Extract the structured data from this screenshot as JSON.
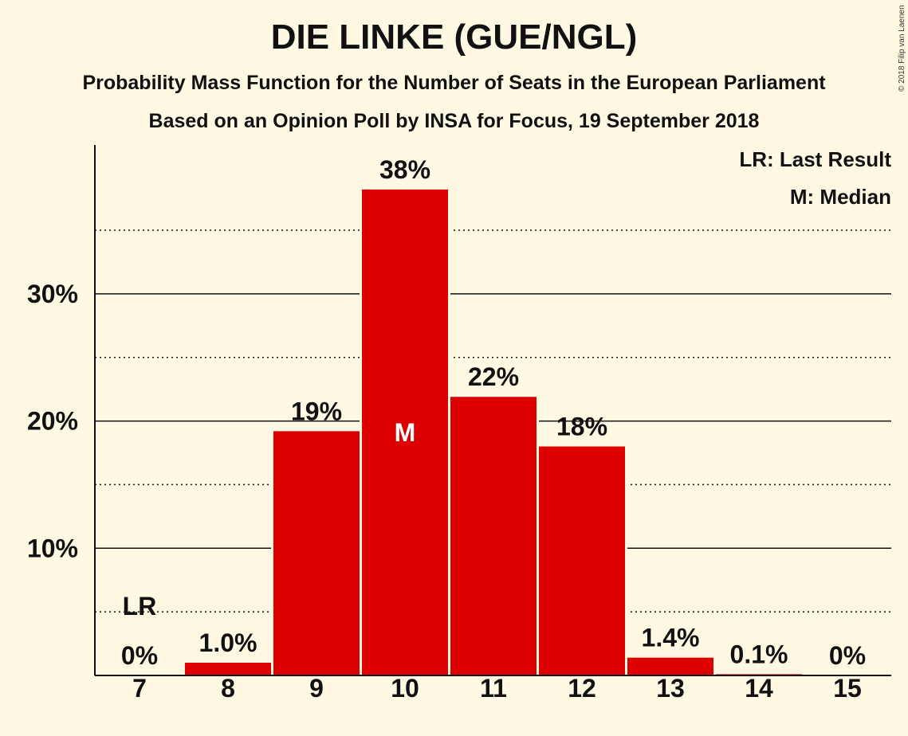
{
  "chart_data": {
    "type": "bar",
    "title": "DIE LINKE (GUE/NGL)",
    "subtitle": "Probability Mass Function for the Number of Seats in the European Parliament",
    "subtitle2": "Based on an Opinion Poll by INSA for Focus, 19 September 2018",
    "copyright": "© 2018 Filip van Laenen",
    "legend": [
      "LR: Last Result",
      "M: Median"
    ],
    "legend_position": "top-right",
    "categories": [
      "7",
      "8",
      "9",
      "10",
      "11",
      "12",
      "13",
      "14",
      "15"
    ],
    "values": [
      0,
      1.0,
      19.2,
      38.2,
      21.9,
      18.0,
      1.4,
      0.1,
      0
    ],
    "bar_labels": [
      "0%",
      "1.0%",
      "19%",
      "38%",
      "22%",
      "18%",
      "1.4%",
      "0.1%",
      "0%"
    ],
    "y_ticks": [
      {
        "value": 10,
        "label": "10%"
      },
      {
        "value": 20,
        "label": "20%"
      },
      {
        "value": 30,
        "label": "30%"
      }
    ],
    "y_minor_gridlines": [
      5,
      15,
      25,
      35
    ],
    "ylim": [
      0,
      41.7
    ],
    "median_category": "10",
    "median_marker": "M",
    "last_result_category": "7",
    "last_result_marker": "LR",
    "bar_color": "#dd0000",
    "background_color": "#fff9e3"
  }
}
